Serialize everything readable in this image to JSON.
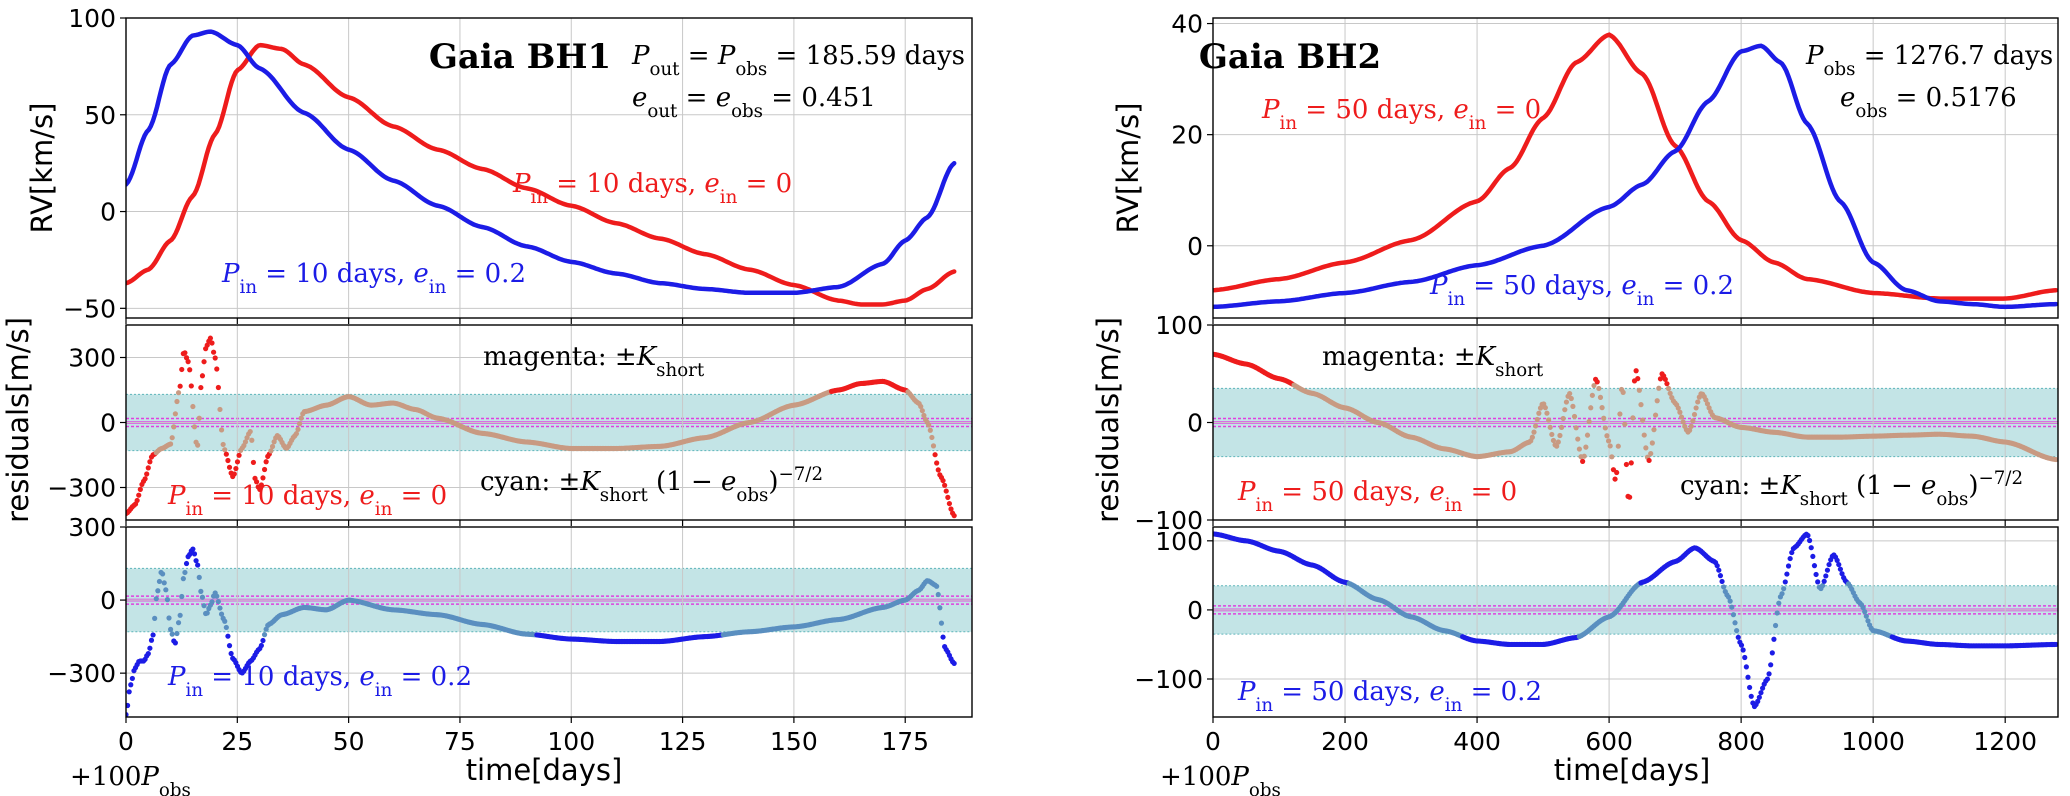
{
  "colors": {
    "red": "#ee1c1c",
    "blue": "#1c1ce6",
    "magenta": "#e040e0",
    "cyan_band": "#9bd2d5",
    "tan": "#c89a82",
    "steel": "#5a8fc0"
  },
  "chart_data": [
    {
      "type": "line",
      "title": "Gaia BH1",
      "panel": "left-top",
      "ylabel": "RV[km/s]",
      "xlim": [
        0,
        190
      ],
      "ylim": [
        -55,
        100
      ],
      "yticks": [
        "−50",
        "0",
        "50",
        "100"
      ],
      "yticks_values": [
        -50,
        0,
        50,
        100
      ],
      "annotations": [
        "P_out = P_obs = 185.59 days",
        "e_out = e_obs = 0.451"
      ],
      "series": [
        {
          "name": "P_in = 10 days, e_in = 0",
          "color": "red",
          "x": [
            0,
            5,
            10,
            15,
            20,
            25,
            30,
            35,
            40,
            50,
            60,
            70,
            80,
            90,
            100,
            110,
            120,
            130,
            140,
            150,
            160,
            165,
            170,
            175,
            180,
            186
          ],
          "y": [
            -37,
            -30,
            -15,
            8,
            40,
            73,
            86,
            84,
            76,
            59,
            44,
            32,
            22,
            12,
            3,
            -6,
            -14,
            -22,
            -30,
            -38,
            -46,
            -48,
            -48,
            -46,
            -40,
            -31
          ]
        },
        {
          "name": "P_in = 10 days, e_in = 0.2",
          "color": "blue",
          "x": [
            0,
            5,
            10,
            15,
            19,
            25,
            30,
            40,
            50,
            60,
            70,
            80,
            90,
            100,
            110,
            120,
            130,
            140,
            150,
            160,
            170,
            175,
            180,
            186
          ],
          "y": [
            14,
            42,
            76,
            91,
            93,
            86,
            74,
            51,
            32,
            16,
            3,
            -8,
            -18,
            -26,
            -32,
            -37,
            -40,
            -42,
            -42,
            -39,
            -27,
            -15,
            -3,
            25
          ]
        }
      ]
    },
    {
      "type": "scatter",
      "panel": "left-middle",
      "ylabel": "residuals[m/s]",
      "xlim": [
        0,
        190
      ],
      "ylim": [
        -450,
        450
      ],
      "yticks": [
        "−300",
        "0",
        "300"
      ],
      "yticks_values": [
        -300,
        0,
        300
      ],
      "band": [
        -130,
        130
      ],
      "annotations": [
        "magenta: ±K_short",
        "cyan: ±K_short (1 − e_obs)^−7/2"
      ],
      "series": [
        {
          "name": "P_in = 10 days, e_in = 0",
          "color": "red",
          "x": [
            0,
            2,
            4,
            6,
            8,
            10,
            12,
            13,
            14,
            16,
            17,
            18,
            19,
            20,
            22,
            24,
            26,
            28,
            29,
            30,
            32,
            34,
            36,
            38,
            40,
            45,
            50,
            55,
            60,
            65,
            70,
            80,
            90,
            100,
            110,
            120,
            130,
            140,
            150,
            160,
            165,
            170,
            175,
            178,
            180,
            183,
            186
          ],
          "y": [
            -420,
            -380,
            -270,
            -150,
            -120,
            -100,
            150,
            330,
            280,
            -120,
            200,
            350,
            390,
            300,
            -120,
            -250,
            -120,
            -40,
            -260,
            -310,
            -150,
            -60,
            -120,
            -60,
            50,
            80,
            120,
            80,
            90,
            60,
            20,
            -50,
            -90,
            -120,
            -120,
            -110,
            -70,
            0,
            80,
            150,
            180,
            190,
            150,
            90,
            0,
            -250,
            -430
          ]
        }
      ]
    },
    {
      "type": "scatter",
      "panel": "left-bottom",
      "xlabel": "time[days]",
      "xlim": [
        0,
        190
      ],
      "ylim": [
        -480,
        300
      ],
      "yticks": [
        "−300",
        "0",
        "300"
      ],
      "yticks_values": [
        -300,
        0,
        300
      ],
      "xticks_values": [
        0,
        25,
        50,
        75,
        100,
        125,
        150,
        175
      ],
      "band": [
        -130,
        130
      ],
      "x_offset_label": "+100P_obs",
      "series": [
        {
          "name": "P_in = 10 days, e_in = 0.2",
          "color": "blue",
          "x": [
            0,
            1,
            2,
            3,
            4,
            5,
            6,
            7,
            8,
            9,
            10,
            11,
            12,
            13,
            14,
            15,
            16,
            17,
            18,
            19,
            20,
            22,
            24,
            26,
            28,
            30,
            32,
            35,
            40,
            45,
            50,
            60,
            70,
            80,
            90,
            100,
            110,
            120,
            130,
            140,
            150,
            160,
            170,
            175,
            178,
            180,
            182,
            184,
            186
          ],
          "y": [
            -470,
            -350,
            -280,
            -250,
            -250,
            -220,
            -150,
            30,
            120,
            40,
            -120,
            -180,
            -80,
            100,
            180,
            210,
            150,
            20,
            -60,
            -20,
            30,
            -80,
            -240,
            -300,
            -250,
            -200,
            -100,
            -60,
            -30,
            -40,
            0,
            -40,
            -60,
            -100,
            -140,
            -160,
            -170,
            -170,
            -150,
            -130,
            -110,
            -80,
            -30,
            0,
            40,
            80,
            60,
            -200,
            -260
          ]
        }
      ]
    },
    {
      "type": "line",
      "title": "Gaia BH2",
      "panel": "right-top",
      "ylabel": "RV[km/s]",
      "xlim": [
        0,
        1280
      ],
      "ylim": [
        -13,
        41
      ],
      "yticks": [
        "0",
        "20",
        "40"
      ],
      "yticks_values": [
        0,
        20,
        40
      ],
      "annotations": [
        "P_obs = 1276.7 days",
        "e_obs = 0.5176"
      ],
      "series": [
        {
          "name": "P_in = 50 days, e_in = 0",
          "color": "red",
          "x": [
            0,
            100,
            200,
            300,
            400,
            450,
            500,
            550,
            600,
            650,
            700,
            750,
            800,
            850,
            900,
            1000,
            1100,
            1200,
            1277
          ],
          "y": [
            -8,
            -6,
            -3,
            1,
            8,
            14,
            23,
            33,
            38,
            31,
            18,
            8,
            1,
            -3,
            -6,
            -8.5,
            -9.5,
            -9.5,
            -8
          ]
        },
        {
          "name": "P_in = 50 days, e_in = 0.2",
          "color": "blue",
          "x": [
            0,
            100,
            200,
            300,
            400,
            500,
            600,
            650,
            700,
            750,
            800,
            830,
            860,
            900,
            950,
            1000,
            1050,
            1100,
            1150,
            1200,
            1277
          ],
          "y": [
            -11,
            -10,
            -8.5,
            -6.5,
            -3.5,
            0,
            7,
            11,
            17,
            26,
            35,
            36,
            33,
            22,
            8,
            -3,
            -8,
            -10,
            -10.5,
            -11,
            -10.5
          ]
        }
      ]
    },
    {
      "type": "scatter",
      "panel": "right-middle",
      "ylabel": "residuals[m/s]",
      "xlim": [
        0,
        1280
      ],
      "ylim": [
        -100,
        100
      ],
      "yticks": [
        "−100",
        "0",
        "100"
      ],
      "yticks_values": [
        -100,
        0,
        100
      ],
      "band": [
        -35,
        35
      ],
      "annotations": [
        "magenta: ±K_short",
        "cyan: ±K_short (1 − e_obs)^−7/2"
      ],
      "series": [
        {
          "name": "P_in = 50 days, e_in = 0",
          "color": "red",
          "x": [
            0,
            50,
            100,
            150,
            200,
            250,
            300,
            350,
            400,
            450,
            480,
            500,
            520,
            540,
            560,
            580,
            600,
            610,
            620,
            630,
            640,
            660,
            680,
            700,
            720,
            740,
            760,
            800,
            850,
            900,
            950,
            1000,
            1050,
            1100,
            1150,
            1200,
            1277
          ],
          "y": [
            70,
            60,
            45,
            30,
            15,
            0,
            -15,
            -27,
            -35,
            -30,
            -20,
            20,
            -25,
            30,
            -40,
            45,
            -20,
            -60,
            40,
            -85,
            55,
            -40,
            50,
            20,
            -10,
            30,
            5,
            -5,
            -10,
            -15,
            -15,
            -14,
            -13,
            -12,
            -14,
            -20,
            -38
          ]
        }
      ]
    },
    {
      "type": "scatter",
      "panel": "right-bottom",
      "xlabel": "time[days]",
      "xlim": [
        0,
        1280
      ],
      "ylim": [
        -155,
        120
      ],
      "yticks": [
        "−100",
        "0",
        "100"
      ],
      "yticks_values": [
        -100,
        0,
        100
      ],
      "xticks_values": [
        0,
        200,
        400,
        600,
        800,
        1000,
        1200
      ],
      "band": [
        -35,
        35
      ],
      "x_offset_label": "+100P_obs",
      "series": [
        {
          "name": "P_in = 50 days, e_in = 0.2",
          "color": "blue",
          "x": [
            0,
            50,
            100,
            150,
            200,
            250,
            300,
            350,
            400,
            450,
            500,
            550,
            600,
            650,
            700,
            730,
            760,
            780,
            800,
            820,
            840,
            860,
            880,
            900,
            920,
            940,
            960,
            980,
            1000,
            1050,
            1100,
            1150,
            1200,
            1277
          ],
          "y": [
            110,
            100,
            85,
            65,
            40,
            15,
            -10,
            -30,
            -45,
            -50,
            -50,
            -40,
            -10,
            40,
            70,
            90,
            70,
            20,
            -50,
            -140,
            -100,
            20,
            90,
            110,
            30,
            80,
            40,
            10,
            -30,
            -45,
            -50,
            -52,
            -52,
            -50
          ]
        }
      ]
    }
  ],
  "labels": {
    "left": {
      "title": "Gaia BH1",
      "top_ylabel": "RV[km/s]",
      "res_ylabel": "residuals[m/s]",
      "xlabel": "time[days]",
      "ann_pout_prefix": "P",
      "ann_pout_sub": "out",
      "ann_eq1": " = ",
      "ann_pobs": "P",
      "ann_pobs_sub": "obs",
      "ann_pout_value": " = 185.59 days",
      "ann_eout": "e",
      "ann_eout_sub": "out",
      "ann_eobs": "e",
      "ann_eobs_sub": "obs",
      "ann_eout_value": " = 0.451",
      "red_label_pre": "P",
      "red_label_sub": "in",
      "red_label_mid": " = 10 days, ",
      "red_label_e": "e",
      "red_label_esub": "in",
      "red_label_val": " = 0",
      "blue_label_val": " = 0.2",
      "magenta_text": "magenta: ±",
      "K": "K",
      "K_sub": "short",
      "cyan_text": "cyan: ±",
      "cyan_mid": " (1 − ",
      "cyan_close": ")",
      "cyan_exp": "−7/2",
      "offset_text": "+100",
      "offset_P": "P",
      "offset_sub": "obs"
    },
    "right": {
      "title": "Gaia BH2",
      "ann_pobs_value": " = 1276.7 days",
      "ann_eobs_value": " = 0.5176",
      "label_mid": " = 50 days, "
    }
  }
}
